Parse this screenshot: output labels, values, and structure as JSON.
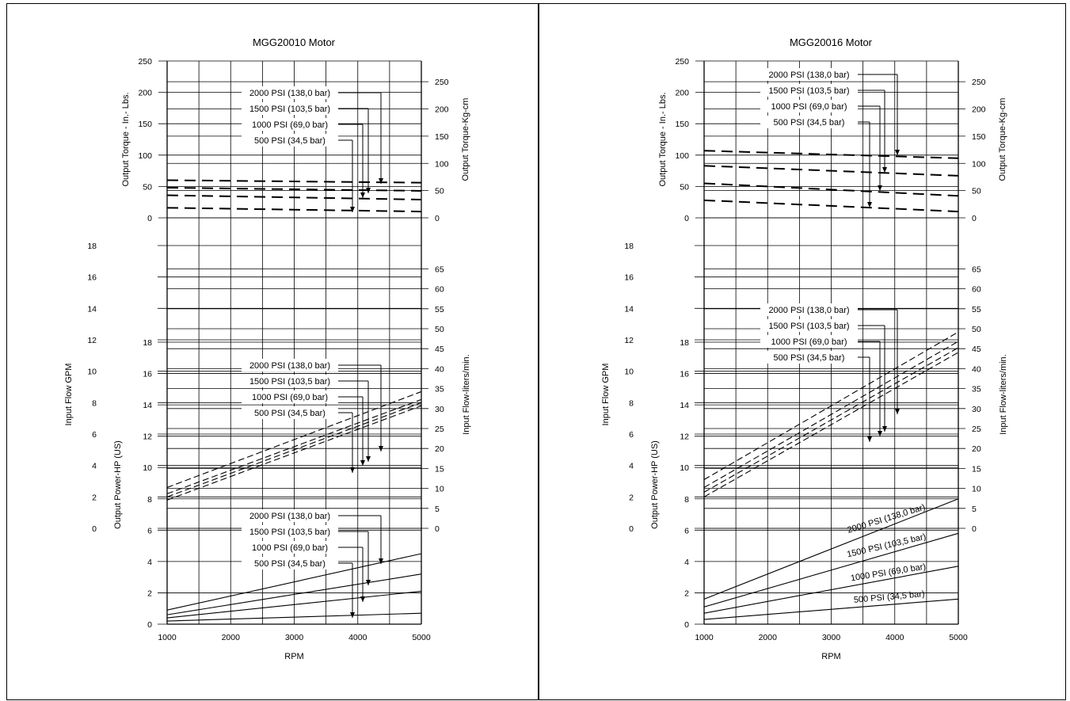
{
  "chart_data": [
    {
      "type": "line",
      "title": "MGG20010 Motor",
      "xlabel": "RPM",
      "xlim": [
        1000,
        5000
      ],
      "x_ticks": [
        "1000",
        "2000",
        "3000",
        "4000",
        "5000"
      ],
      "grid": true,
      "torque": {
        "ylabel": "Output Torque - In.- Lbs.",
        "y2label": "Output Torque-Kg-cm",
        "ylim": [
          0,
          250
        ],
        "y_ticks": [
          "0",
          "50",
          "100",
          "150",
          "200",
          "250"
        ],
        "y2_ticks": [
          "0",
          "50",
          "100",
          "150",
          "200",
          "250"
        ],
        "series": [
          {
            "name": "2000 PSI (138,0 bar)",
            "x": [
              1000,
              5000
            ],
            "y": [
              60,
              56
            ]
          },
          {
            "name": "1500 PSI (103,5 bar)",
            "x": [
              1000,
              5000
            ],
            "y": [
              48,
              43
            ]
          },
          {
            "name": "1000 PSI (69,0 bar)",
            "x": [
              1000,
              5000
            ],
            "y": [
              36,
              29
            ]
          },
          {
            "name": "500 PSI (34,5 bar)",
            "x": [
              1000,
              5000
            ],
            "y": [
              16,
              10
            ]
          }
        ]
      },
      "flow": {
        "ylabel": "Input Flow GPM",
        "y2label": "Input Flow-liters/min.",
        "ylim": [
          0,
          18
        ],
        "y_ticks": [
          "0",
          "2",
          "4",
          "6",
          "8",
          "10",
          "12",
          "14",
          "16",
          "18"
        ],
        "y2_ticks": [
          "0",
          "5",
          "10",
          "15",
          "20",
          "25",
          "30",
          "35",
          "40",
          "45",
          "50",
          "55",
          "60",
          "65"
        ],
        "series": [
          {
            "name": "2000 PSI (138,0 bar)",
            "x": [
              1000,
              5000
            ],
            "y": [
              2.6,
              8.7
            ]
          },
          {
            "name": "1500 PSI (103,5 bar)",
            "x": [
              1000,
              5000
            ],
            "y": [
              2.2,
              8.2
            ]
          },
          {
            "name": "1000 PSI (69,0 bar)",
            "x": [
              1000,
              5000
            ],
            "y": [
              2.0,
              8.0
            ]
          },
          {
            "name": "500 PSI (34,5 bar)",
            "x": [
              1000,
              5000
            ],
            "y": [
              1.8,
              7.8
            ]
          }
        ]
      },
      "power": {
        "ylabel": "Output Power-HP (US)",
        "ylim": [
          0,
          18
        ],
        "y_ticks": [
          "0",
          "2",
          "4",
          "6",
          "8",
          "10",
          "12",
          "14",
          "16",
          "18"
        ],
        "series": [
          {
            "name": "2000 PSI (138,0 bar)",
            "x": [
              1000,
              5000
            ],
            "y": [
              0.9,
              4.5
            ]
          },
          {
            "name": "1500 PSI (103,5 bar)",
            "x": [
              1000,
              5000
            ],
            "y": [
              0.6,
              3.2
            ]
          },
          {
            "name": "1000 PSI (69,0 bar)",
            "x": [
              1000,
              5000
            ],
            "y": [
              0.4,
              2.1
            ]
          },
          {
            "name": "500 PSI (34,5 bar)",
            "x": [
              1000,
              5000
            ],
            "y": [
              0.2,
              0.7
            ]
          }
        ]
      }
    },
    {
      "type": "line",
      "title": "MGG20016 Motor",
      "xlabel": "RPM",
      "xlim": [
        1000,
        5000
      ],
      "x_ticks": [
        "1000",
        "2000",
        "3000",
        "4000",
        "5000"
      ],
      "grid": true,
      "torque": {
        "ylabel": "Output Torque - In.- Lbs.",
        "y2label": "Output Torque-Kg-cm",
        "ylim": [
          0,
          250
        ],
        "y_ticks": [
          "0",
          "50",
          "100",
          "150",
          "200",
          "250"
        ],
        "y2_ticks": [
          "0",
          "50",
          "100",
          "150",
          "200",
          "250"
        ],
        "series": [
          {
            "name": "2000 PSI (138,0 bar)",
            "x": [
              1000,
              5000
            ],
            "y": [
              107,
              95
            ]
          },
          {
            "name": "1500 PSI (103,5 bar)",
            "x": [
              1000,
              5000
            ],
            "y": [
              83,
              67
            ]
          },
          {
            "name": "1000 PSI (69,0 bar)",
            "x": [
              1000,
              5000
            ],
            "y": [
              55,
              35
            ]
          },
          {
            "name": "500 PSI (34,5 bar)",
            "x": [
              1000,
              5000
            ],
            "y": [
              28,
              10
            ]
          }
        ]
      },
      "flow": {
        "ylabel": "Input Flow GPM",
        "y2label": "Input Flow-liters/min.",
        "ylim": [
          0,
          18
        ],
        "y_ticks": [
          "0",
          "2",
          "4",
          "6",
          "8",
          "10",
          "12",
          "14",
          "16",
          "18"
        ],
        "y2_ticks": [
          "0",
          "5",
          "10",
          "15",
          "20",
          "25",
          "30",
          "35",
          "40",
          "45",
          "50",
          "55",
          "60",
          "65"
        ],
        "series": [
          {
            "name": "2000 PSI (138,0 bar)",
            "x": [
              1000,
              5000
            ],
            "y": [
              3.1,
              12.5
            ]
          },
          {
            "name": "1500 PSI (103,5 bar)",
            "x": [
              1000,
              5000
            ],
            "y": [
              2.6,
              11.9
            ]
          },
          {
            "name": "1000 PSI (69,0 bar)",
            "x": [
              1000,
              5000
            ],
            "y": [
              2.3,
              11.5
            ]
          },
          {
            "name": "500 PSI (34,5 bar)",
            "x": [
              1000,
              5000
            ],
            "y": [
              2.0,
              11.2
            ]
          }
        ]
      },
      "power": {
        "ylabel": "Output Power-HP (US)",
        "ylim": [
          0,
          18
        ],
        "y_ticks": [
          "0",
          "2",
          "4",
          "6",
          "8",
          "10",
          "12",
          "14",
          "16",
          "18"
        ],
        "series": [
          {
            "name": "2000 PSI (138,0 bar)",
            "x": [
              1000,
              5000
            ],
            "y": [
              1.6,
              8.0
            ]
          },
          {
            "name": "1500 PSI (103,5 bar)",
            "x": [
              1000,
              5000
            ],
            "y": [
              1.1,
              5.8
            ]
          },
          {
            "name": "1000 PSI (69,0 bar)",
            "x": [
              1000,
              5000
            ],
            "y": [
              0.7,
              3.7
            ]
          },
          {
            "name": "500 PSI (34,5 bar)",
            "x": [
              1000,
              5000
            ],
            "y": [
              0.3,
              1.6
            ]
          }
        ]
      }
    }
  ]
}
